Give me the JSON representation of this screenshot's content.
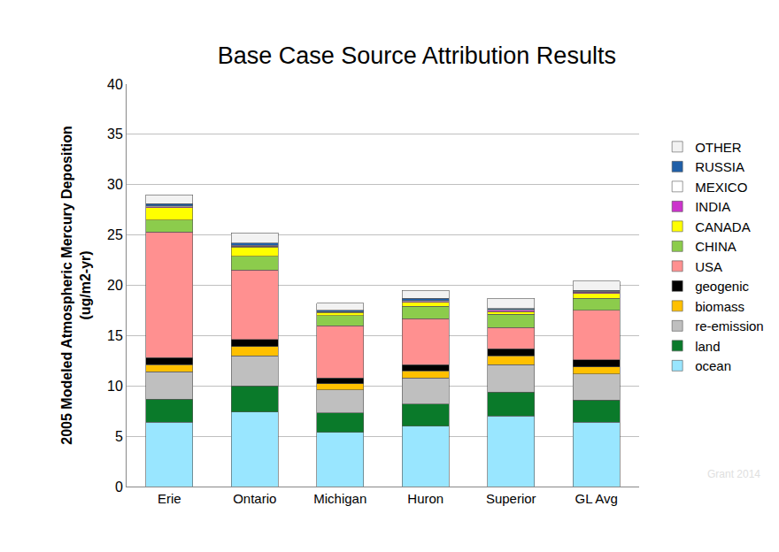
{
  "chart_data": {
    "type": "bar",
    "stacked": true,
    "title": "Base Case Source Attribution Results",
    "ylabel": [
      "2005 Modeled Atmospheric Mercury Deposition",
      "(ug/m2-yr)"
    ],
    "annotations": [
      "Grant 2014"
    ],
    "categories": [
      "Erie",
      "Ontario",
      "Michigan",
      "Huron",
      "Superior",
      "GL Avg"
    ],
    "ylim": [
      0,
      40
    ],
    "yticks": [
      0,
      5,
      10,
      15,
      20,
      25,
      30,
      35,
      40
    ],
    "grid": true,
    "legend": "right",
    "series": [
      {
        "name": "ocean",
        "color": "#99e6ff",
        "values": [
          6.4,
          7.4,
          5.4,
          6.0,
          7.0,
          6.4
        ]
      },
      {
        "name": "land",
        "color": "#0a7a2a",
        "values": [
          2.3,
          2.6,
          1.9,
          2.2,
          2.4,
          2.2
        ]
      },
      {
        "name": "re-emission",
        "color": "#bfbfbf",
        "values": [
          2.7,
          3.0,
          2.3,
          2.6,
          2.7,
          2.6
        ]
      },
      {
        "name": "biomass",
        "color": "#ffc000",
        "values": [
          0.7,
          0.9,
          0.6,
          0.7,
          0.9,
          0.7
        ]
      },
      {
        "name": "geogenic",
        "color": "#000000",
        "values": [
          0.7,
          0.7,
          0.6,
          0.6,
          0.7,
          0.7
        ]
      },
      {
        "name": "USA",
        "color": "#ff9090",
        "values": [
          12.5,
          6.9,
          5.2,
          4.6,
          2.1,
          4.9
        ]
      },
      {
        "name": "CHINA",
        "color": "#8ccc4c",
        "values": [
          1.2,
          1.4,
          1.0,
          1.2,
          1.3,
          1.2
        ]
      },
      {
        "name": "CANADA",
        "color": "#ffff00",
        "values": [
          1.2,
          0.9,
          0.3,
          0.4,
          0.3,
          0.5
        ]
      },
      {
        "name": "INDIA",
        "color": "#cc33cc",
        "values": [
          0.1,
          0.1,
          0.05,
          0.1,
          0.1,
          0.1
        ]
      },
      {
        "name": "MEXICO",
        "color": "#ffffff",
        "values": [
          0.1,
          0.1,
          0.05,
          0.1,
          0.1,
          0.1
        ]
      },
      {
        "name": "RUSSIA",
        "color": "#1f5fa8",
        "values": [
          0.2,
          0.2,
          0.1,
          0.2,
          0.1,
          0.1
        ]
      },
      {
        "name": "OTHER",
        "color": "#f2f2f2",
        "values": [
          0.9,
          1.0,
          0.7,
          0.8,
          1.0,
          0.9
        ]
      }
    ]
  }
}
